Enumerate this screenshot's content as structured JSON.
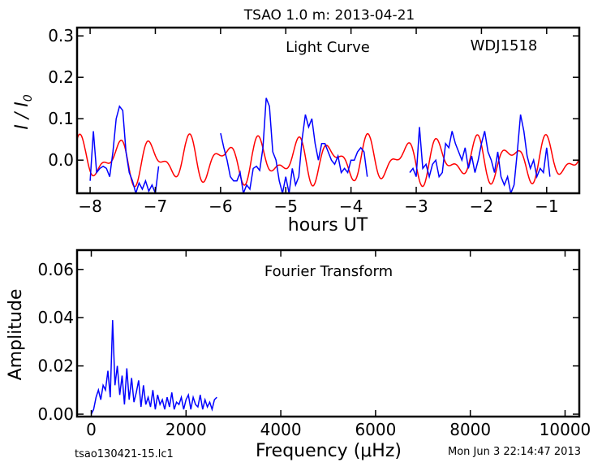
{
  "figure": {
    "title": "TSAO 1.0 m:  2013-04-21",
    "footer_left": "tsao130421-15.lc1",
    "footer_right": "Mon Jun  3 22:14:47 2013"
  },
  "chart_data": [
    {
      "type": "line",
      "annotation": "Light Curve",
      "object_label": "WDJ1518",
      "xlabel": "hours UT",
      "ylabel": "I / I0",
      "xlim": [
        -8.2,
        -0.5
      ],
      "ylim": [
        -0.08,
        0.32
      ],
      "xticks": [
        -8,
        -7,
        -6,
        -5,
        -4,
        -3,
        -2,
        -1
      ],
      "xtick_labels": [
        "−8",
        "−7",
        "−6",
        "−5",
        "−4",
        "−3",
        "−2",
        "−1"
      ],
      "yticks": [
        0.0,
        0.1,
        0.2,
        0.3
      ],
      "ytick_labels": [
        "0.0",
        "0.1",
        "0.2",
        "0.3"
      ],
      "grid": false,
      "series": [
        {
          "color": "#0000ff",
          "segments": [
            {
              "x": [
                -8.0,
                -7.95,
                -7.9,
                -7.85,
                -7.8,
                -7.75,
                -7.7,
                -7.65,
                -7.6,
                -7.55,
                -7.5,
                -7.45,
                -7.4,
                -7.35,
                -7.3,
                -7.25,
                -7.2,
                -7.15,
                -7.1,
                -7.05,
                -7.0,
                -6.95
              ],
              "y": [
                -0.05,
                0.07,
                -0.03,
                -0.02,
                -0.015,
                -0.02,
                -0.04,
                0.02,
                0.1,
                0.13,
                0.12,
                0.02,
                -0.03,
                -0.05,
                -0.08,
                -0.055,
                -0.07,
                -0.05,
                -0.075,
                -0.06,
                -0.08,
                -0.015
              ]
            },
            {
              "x": [
                -6.0,
                -5.95,
                -5.9,
                -5.85,
                -5.8,
                -5.75,
                -5.7,
                -5.65,
                -5.6,
                -5.55,
                -5.5,
                -5.45,
                -5.4,
                -5.35,
                -5.3,
                -5.25,
                -5.2,
                -5.15,
                -5.1,
                -5.05,
                -5.0,
                -4.95,
                -4.9,
                -4.85,
                -4.8,
                -4.75,
                -4.7,
                -4.65,
                -4.6,
                -4.55,
                -4.5,
                -4.45,
                -4.4,
                -4.35,
                -4.3,
                -4.25,
                -4.2,
                -4.15,
                -4.1,
                -4.05,
                -4.0,
                -3.95,
                -3.9,
                -3.85,
                -3.8,
                -3.75
              ],
              "y": [
                0.065,
                0.03,
                0.0,
                -0.04,
                -0.05,
                -0.05,
                -0.03,
                -0.08,
                -0.06,
                -0.07,
                -0.02,
                -0.015,
                -0.025,
                0.03,
                0.15,
                0.13,
                0.02,
                0.0,
                -0.05,
                -0.08,
                -0.04,
                -0.08,
                -0.02,
                -0.06,
                -0.04,
                0.05,
                0.11,
                0.08,
                0.1,
                0.04,
                0.0,
                0.04,
                0.04,
                0.02,
                0.0,
                -0.01,
                0.01,
                -0.03,
                -0.02,
                -0.03,
                0.0,
                0.0,
                0.02,
                0.03,
                0.02,
                -0.04
              ]
            },
            {
              "x": [
                -3.1,
                -3.05,
                -3.0,
                -2.95,
                -2.9,
                -2.85,
                -2.8,
                -2.75,
                -2.7,
                -2.65,
                -2.6,
                -2.55,
                -2.5,
                -2.45,
                -2.4,
                -2.35,
                -2.3,
                -2.25,
                -2.2,
                -2.15,
                -2.1,
                -2.05,
                -2.0,
                -1.95,
                -1.9,
                -1.85,
                -1.8,
                -1.75,
                -1.7,
                -1.65,
                -1.6,
                -1.55,
                -1.5,
                -1.45,
                -1.4,
                -1.35,
                -1.3,
                -1.25,
                -1.2,
                -1.15,
                -1.1,
                -1.05,
                -1.0,
                -0.95
              ],
              "y": [
                -0.03,
                -0.02,
                -0.04,
                0.08,
                -0.02,
                -0.01,
                -0.04,
                -0.01,
                0.0,
                -0.04,
                -0.03,
                0.04,
                0.03,
                0.07,
                0.04,
                0.02,
                0.0,
                0.03,
                -0.02,
                0.01,
                -0.03,
                0.0,
                0.04,
                0.07,
                0.02,
                0.0,
                -0.03,
                0.02,
                -0.04,
                -0.06,
                -0.04,
                -0.08,
                -0.06,
                0.02,
                0.11,
                0.07,
                0.01,
                -0.02,
                0.0,
                -0.04,
                -0.02,
                -0.03,
                0.03,
                -0.04
              ]
            }
          ]
        },
        {
          "color": "#ff0000",
          "sinusoids": [
            {
              "amplitude": 0.038,
              "period_hours": 0.55,
              "phase": 0.3
            },
            {
              "amplitude": 0.026,
              "period_hours": 0.34,
              "phase": 1.7
            }
          ],
          "x_range": [
            -8.2,
            -0.5
          ],
          "y_offset": 0.0
        }
      ]
    },
    {
      "type": "line",
      "annotation": "Fourier Transform",
      "xlabel": "Frequency (μHz)",
      "ylabel": "Amplitude",
      "xlim": [
        -300,
        10300
      ],
      "ylim": [
        -0.001,
        0.068
      ],
      "xticks": [
        0,
        2000,
        4000,
        6000,
        8000,
        10000
      ],
      "xtick_labels": [
        "0",
        "2000",
        "4000",
        "6000",
        "8000",
        "10000"
      ],
      "yticks": [
        0.0,
        0.02,
        0.04,
        0.06
      ],
      "ytick_labels": [
        "0.00",
        "0.02",
        "0.04",
        "0.06"
      ],
      "grid": false,
      "series": [
        {
          "color": "#0000ff",
          "x": [
            0,
            50,
            100,
            150,
            200,
            250,
            300,
            350,
            400,
            450,
            500,
            550,
            600,
            650,
            700,
            750,
            800,
            850,
            900,
            950,
            1000,
            1050,
            1100,
            1150,
            1200,
            1250,
            1300,
            1350,
            1400,
            1450,
            1500,
            1550,
            1600,
            1650,
            1700,
            1750,
            1800,
            1850,
            1900,
            1950,
            2000,
            2050,
            2100,
            2150,
            2200,
            2250,
            2300,
            2350,
            2400,
            2450,
            2500,
            2550,
            2600,
            2650
          ],
          "y": [
            0.0,
            0.002,
            0.007,
            0.01,
            0.006,
            0.012,
            0.01,
            0.018,
            0.007,
            0.039,
            0.012,
            0.02,
            0.008,
            0.016,
            0.004,
            0.019,
            0.006,
            0.015,
            0.005,
            0.009,
            0.014,
            0.003,
            0.012,
            0.004,
            0.007,
            0.003,
            0.01,
            0.002,
            0.008,
            0.004,
            0.006,
            0.002,
            0.007,
            0.003,
            0.009,
            0.002,
            0.005,
            0.004,
            0.007,
            0.002,
            0.006,
            0.008,
            0.002,
            0.007,
            0.004,
            0.003,
            0.008,
            0.002,
            0.006,
            0.003,
            0.005,
            0.002,
            0.006,
            0.007
          ]
        }
      ]
    }
  ]
}
